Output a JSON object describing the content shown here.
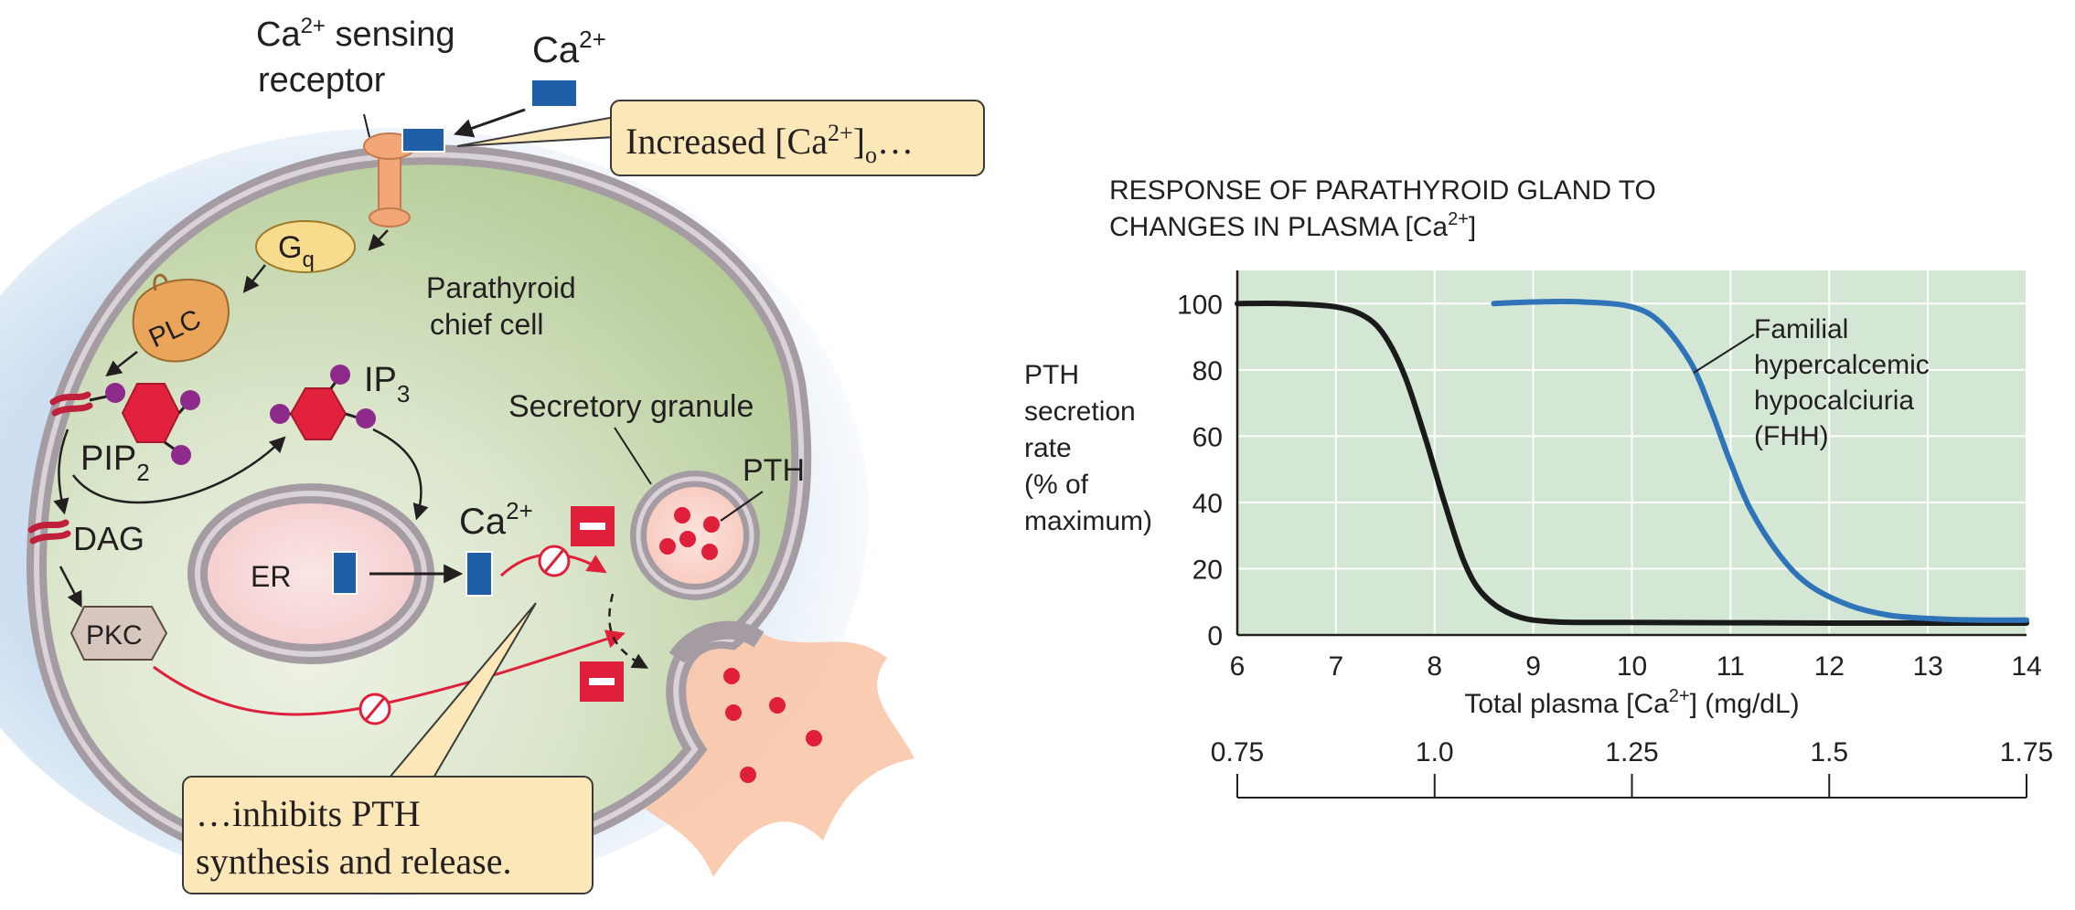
{
  "diagram": {
    "receptor_label_line1": "Ca",
    "receptor_label_sup": "2+",
    "receptor_label_rest": " sensing",
    "receptor_label_line2": "receptor",
    "ca_ext_label": "Ca",
    "ca_ext_sup": "2+",
    "callout_top_prefix": "Increased [Ca",
    "callout_top_sup": "2+",
    "callout_top_suffix_bracket": "]",
    "callout_top_sub": "o",
    "callout_top_ellipsis": "…",
    "gq_label": "G",
    "gq_sub": "q",
    "plc_label": "PLC",
    "cell_label_line1": "Parathyroid",
    "cell_label_line2": "chief cell",
    "pip2_label": "PIP",
    "pip2_sub": "2",
    "ip3_label": "IP",
    "ip3_sub": "3",
    "secretory_granule_label": "Secretory granule",
    "pth_label": "PTH",
    "dag_label": "DAG",
    "er_label": "ER",
    "ca_int_label": "Ca",
    "ca_int_sup": "2+",
    "pkc_label": "PKC",
    "callout_bottom_line1": "…inhibits PTH",
    "callout_bottom_line2": "synthesis and release.",
    "colors": {
      "cell_fill": "#c9d9b5",
      "membrane": "#a59ca3",
      "calcium_block": "#1f5fa8",
      "hexagon": "#e2213c",
      "phosphate": "#8e2a8c",
      "inhibit_red": "#e0203a",
      "callout_fill": "#fbe7b8",
      "blue_glow": "#c6dbef"
    }
  },
  "chart": {
    "title_line1": "RESPONSE OF PARATHYROID GLAND TO",
    "title_line2_prefix": "CHANGES IN PLASMA [Ca",
    "title_line2_sup": "2+",
    "title_line2_suffix": "]",
    "ylabel_lines": [
      "PTH",
      "secretion",
      "rate",
      "(% of",
      "maximum)"
    ],
    "xlabel_prefix": "Total plasma [Ca",
    "xlabel_sup": "2+",
    "xlabel_suffix": "] (mg/dL)",
    "fhh_label_lines": [
      "Familial",
      "hypercalcemic",
      "hypocalciuria",
      "(FHH)"
    ],
    "colors": {
      "plot_bg": "#d4e6d4",
      "grid": "#ffffff",
      "normal_curve": "#1a1a1a",
      "fhh_curve": "#2f73b8"
    }
  },
  "chart_data": {
    "type": "line",
    "title": "RESPONSE OF PARATHYROID GLAND TO CHANGES IN PLASMA [Ca2+]",
    "xlabel": "Total plasma [Ca2+] (mg/dL)",
    "ylabel": "PTH secretion rate (% of maximum)",
    "xlim": [
      6,
      14
    ],
    "ylim": [
      0,
      110
    ],
    "xticks": [
      6,
      7,
      8,
      9,
      10,
      11,
      12,
      13,
      14
    ],
    "yticks": [
      0,
      20,
      40,
      60,
      80,
      100
    ],
    "grid": true,
    "secondary_axis": {
      "ticks": [
        0.75,
        1.0,
        1.25,
        1.5,
        1.75
      ],
      "tick_labels": [
        "0.75",
        "1.0",
        "1.25",
        "1.5",
        "1.75"
      ],
      "range": [
        0.75,
        1.75
      ],
      "position": "bottom"
    },
    "series": [
      {
        "name": "",
        "x": [
          6.0,
          6.5,
          7.0,
          7.3,
          7.5,
          7.7,
          7.9,
          8.0,
          8.1,
          8.3,
          8.5,
          8.8,
          9.2,
          10,
          11,
          12,
          13,
          14
        ],
        "y": [
          100,
          100,
          99,
          96,
          90,
          78,
          60,
          50,
          40,
          22,
          12,
          6,
          4,
          3.8,
          3.7,
          3.6,
          3.6,
          3.6
        ]
      },
      {
        "name": "Familial hypercalcemic hypocalciuria (FHH)",
        "x": [
          8.6,
          9.0,
          9.5,
          10.0,
          10.3,
          10.6,
          10.8,
          10.9,
          11.0,
          11.2,
          11.5,
          11.8,
          12.2,
          12.6,
          13.0,
          13.5,
          14.0
        ],
        "y": [
          100,
          100.5,
          100.5,
          99,
          94,
          82,
          68,
          60,
          52,
          38,
          24,
          15,
          9,
          6,
          5,
          4.5,
          4.5
        ]
      }
    ]
  }
}
